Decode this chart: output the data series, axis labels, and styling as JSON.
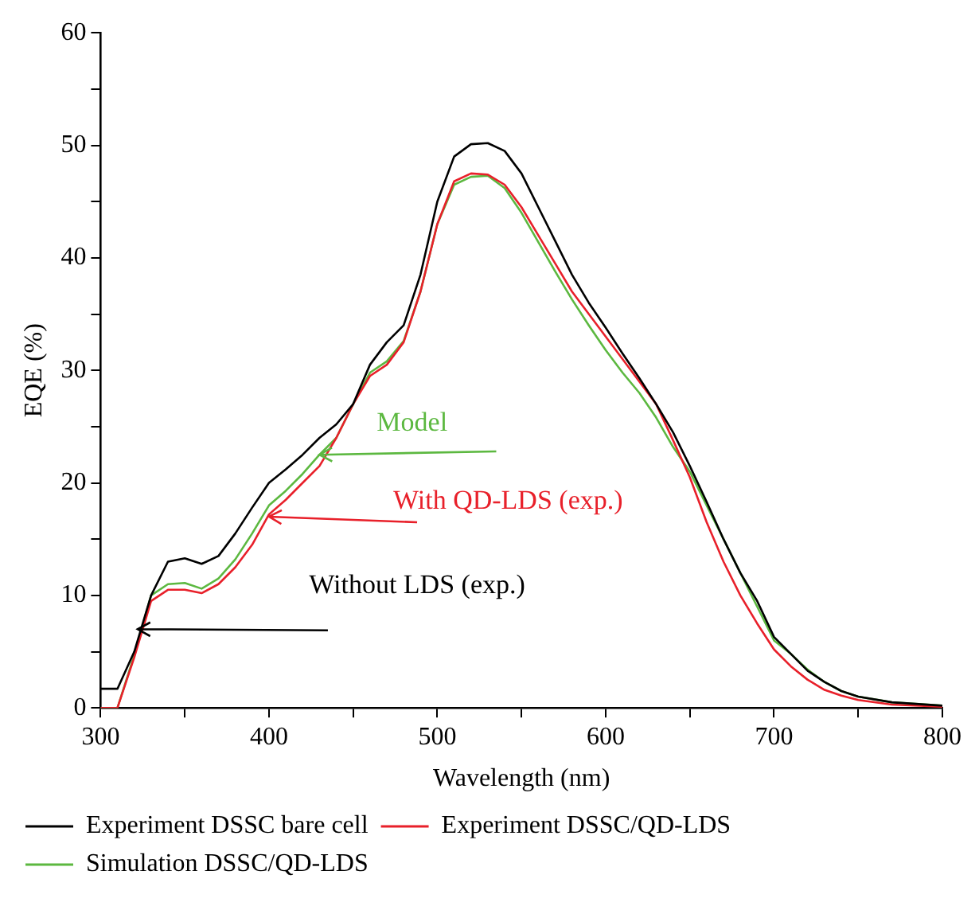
{
  "chart_data": {
    "type": "line",
    "xlabel": "Wavelength (nm)",
    "ylabel": "EQE (%)",
    "xlim": [
      300,
      800
    ],
    "xticks": [
      300,
      {
        "value": 350,
        "label": null
      },
      400,
      {
        "value": 450,
        "label": null
      },
      500,
      {
        "value": 550,
        "label": null
      },
      600,
      {
        "value": 650,
        "label": null
      },
      700,
      {
        "value": 750,
        "label": null
      },
      800
    ],
    "ylim": [
      0,
      60
    ],
    "yticks": [
      0,
      {
        "value": 5,
        "label": null
      },
      10,
      {
        "value": 15,
        "label": null
      },
      20,
      {
        "value": 25,
        "label": null
      },
      30,
      {
        "value": 35,
        "label": null
      },
      40,
      {
        "value": 45,
        "label": null
      },
      50,
      {
        "value": 55,
        "label": null
      },
      60
    ],
    "x": [
      300,
      310,
      320,
      330,
      340,
      350,
      360,
      370,
      380,
      390,
      400,
      410,
      420,
      430,
      440,
      450,
      460,
      470,
      480,
      490,
      500,
      510,
      520,
      530,
      540,
      550,
      560,
      570,
      580,
      590,
      600,
      610,
      620,
      630,
      640,
      650,
      660,
      670,
      680,
      690,
      700,
      710,
      720,
      730,
      740,
      750,
      770,
      800
    ],
    "series": [
      {
        "name": "Experiment DSSC bare cell",
        "color": "#000000",
        "values": [
          1.7,
          1.7,
          5,
          10,
          13,
          13.3,
          12.8,
          13.5,
          15.5,
          17.8,
          20,
          21.2,
          22.5,
          24,
          25.2,
          27,
          30.5,
          32.5,
          34,
          38.5,
          45,
          49,
          50.1,
          50.2,
          49.5,
          47.5,
          44.5,
          41.5,
          38.5,
          36,
          33.8,
          31.5,
          29.3,
          27,
          24.5,
          21.5,
          18.3,
          15,
          12,
          9.5,
          6.3,
          4.8,
          3.3,
          2.3,
          1.5,
          1,
          0.5,
          0.2
        ]
      },
      {
        "name": "Experiment DSSC/QD-LDS",
        "color": "#e8202a",
        "values": [
          0,
          0,
          4.5,
          9.5,
          10.5,
          10.5,
          10.2,
          11,
          12.5,
          14.5,
          17.2,
          18.5,
          20,
          21.5,
          24,
          27,
          29.5,
          30.5,
          32.5,
          37,
          43,
          46.8,
          47.5,
          47.4,
          46.5,
          44.5,
          42,
          39.5,
          37,
          35,
          33,
          31,
          29,
          27,
          23.8,
          20.5,
          16.5,
          13,
          10,
          7.5,
          5.2,
          3.7,
          2.5,
          1.6,
          1.1,
          0.7,
          0.3,
          0.1
        ]
      },
      {
        "name": "Simulation DSSC/QD-LDS",
        "color": "#5cb840",
        "values": [
          0,
          0,
          4.7,
          10,
          11,
          11.1,
          10.6,
          11.5,
          13.2,
          15.5,
          18,
          19.3,
          20.8,
          22.5,
          24,
          27,
          29.8,
          30.8,
          32.6,
          37,
          43,
          46.5,
          47.2,
          47.3,
          46.2,
          44,
          41.4,
          38.8,
          36.3,
          34,
          31.8,
          29.8,
          28,
          25.8,
          23.2,
          21,
          18,
          15,
          12,
          9,
          6,
          4.8,
          3.4,
          2.3,
          1.5,
          1,
          0.5,
          0.2
        ]
      }
    ],
    "annotations": [
      {
        "text": "Model",
        "x": 430,
        "y": 22.5
      },
      {
        "text": "With QD-LDS (exp.)",
        "x": 400,
        "y": 17
      },
      {
        "text": "Without LDS (exp.)",
        "x": 322,
        "y": 7
      }
    ],
    "legend": "bottom",
    "marker": "none",
    "line_style": "solid"
  }
}
